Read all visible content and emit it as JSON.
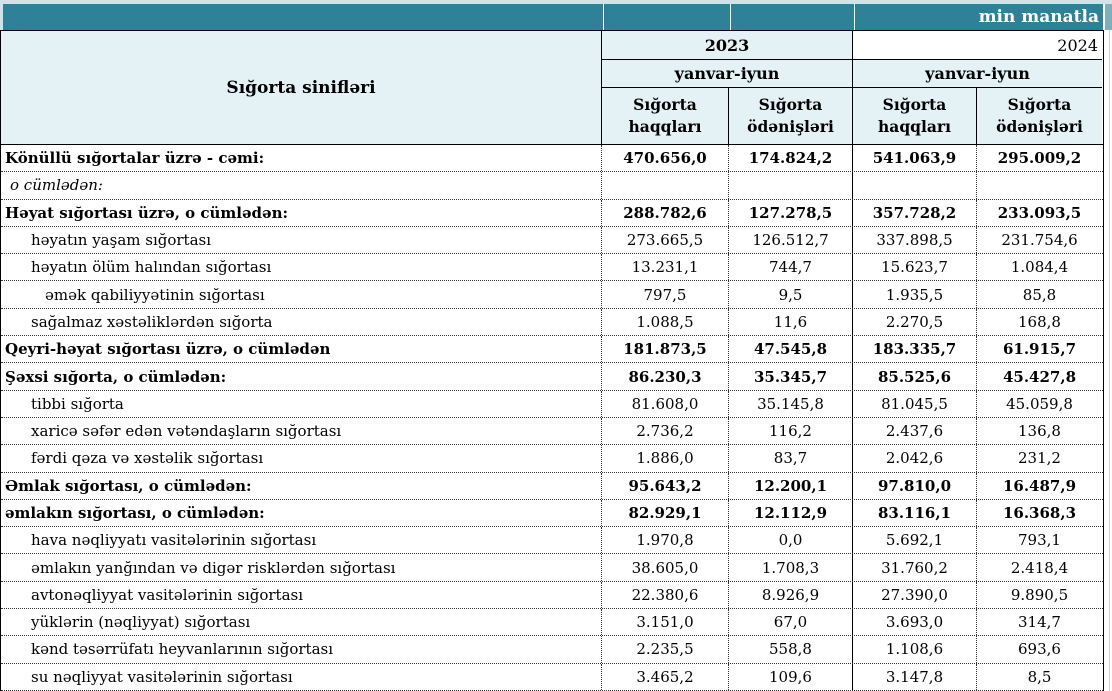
{
  "unit_label": "min manatla",
  "colors": {
    "teal_band": "#2e8196",
    "teal_corner": "#7faebc",
    "header_fill": "#e4f1f5",
    "outer_strip": "#d3e2e9",
    "border": "#000000"
  },
  "header": {
    "row_label_title": "Sığorta sinifləri",
    "years": [
      {
        "label": "2023",
        "period": "yanvar-iyun"
      },
      {
        "label": "2024",
        "period": "yanvar-iyun"
      }
    ],
    "subcols": [
      "Sığorta haqqları",
      "Sığorta ödənişləri"
    ]
  },
  "rows": [
    {
      "label": "Könüllü sığortalar üzrə - cəmi:",
      "style": "bold",
      "indent": 0,
      "values": [
        "470.656,0",
        "174.824,2",
        "541.063,9",
        "295.009,2"
      ]
    },
    {
      "label": "o cümlədən:",
      "style": "italic",
      "indent": 1,
      "values": [
        "",
        "",
        "",
        ""
      ]
    },
    {
      "label": "Həyat sığortası üzrə, o cümlədən:",
      "style": "bold",
      "indent": 0,
      "values": [
        "288.782,6",
        "127.278,5",
        "357.728,2",
        "233.093,5"
      ]
    },
    {
      "label": "həyatın yaşam sığortası",
      "style": "normal",
      "indent": 2,
      "values": [
        "273.665,5",
        "126.512,7",
        "337.898,5",
        "231.754,6"
      ]
    },
    {
      "label": "həyatın ölüm halından sığortası",
      "style": "normal",
      "indent": 2,
      "values": [
        "13.231,1",
        "744,7",
        "15.623,7",
        "1.084,4"
      ]
    },
    {
      "label": "əmək qabiliyyətinin sığortası",
      "style": "normal",
      "indent": 3,
      "values": [
        "797,5",
        "9,5",
        "1.935,5",
        "85,8"
      ]
    },
    {
      "label": "sağalmaz xəstəliklərdən sığorta",
      "style": "normal",
      "indent": 2,
      "values": [
        "1.088,5",
        "11,6",
        "2.270,5",
        "168,8"
      ]
    },
    {
      "label": "Qeyri-həyat sığortası üzrə, o cümlədən",
      "style": "bold",
      "indent": 0,
      "values": [
        "181.873,5",
        "47.545,8",
        "183.335,7",
        "61.915,7"
      ]
    },
    {
      "label": "Şəxsi sığorta,  o cümlədən:",
      "style": "bold",
      "indent": 0,
      "values": [
        "86.230,3",
        "35.345,7",
        "85.525,6",
        "45.427,8"
      ]
    },
    {
      "label": "tibbi sığorta",
      "style": "normal",
      "indent": 2,
      "values": [
        "81.608,0",
        "35.145,8",
        "81.045,5",
        "45.059,8"
      ]
    },
    {
      "label": "xaricə səfər edən vətəndaşların sığortası",
      "style": "normal",
      "indent": 2,
      "values": [
        "2.736,2",
        "116,2",
        "2.437,6",
        "136,8"
      ]
    },
    {
      "label": "fərdi qəza və xəstəlik sığortası",
      "style": "normal",
      "indent": 2,
      "values": [
        "1.886,0",
        "83,7",
        "2.042,6",
        "231,2"
      ]
    },
    {
      "label": "Əmlak sığortası, o cümlədən:",
      "style": "bold",
      "indent": 0,
      "values": [
        "95.643,2",
        "12.200,1",
        "97.810,0",
        "16.487,9"
      ]
    },
    {
      "label": "əmlakın sığortası,  o cümlədən:",
      "style": "bold",
      "indent": 0,
      "values": [
        "82.929,1",
        "12.112,9",
        "83.116,1",
        "16.368,3"
      ]
    },
    {
      "label": "hava nəqliyyatı vasitələrinin sığortası",
      "style": "normal",
      "indent": 2,
      "values": [
        "1.970,8",
        "0,0",
        "5.692,1",
        "793,1"
      ]
    },
    {
      "label": "əmlakın yanğından və digər risklərdən sığortası",
      "style": "normal",
      "indent": 2,
      "values": [
        "38.605,0",
        "1.708,3",
        "31.760,2",
        "2.418,4"
      ]
    },
    {
      "label": "avtonəqliyyat vasitələrinin sığortası",
      "style": "normal",
      "indent": 2,
      "values": [
        "22.380,6",
        "8.926,9",
        "27.390,0",
        "9.890,5"
      ]
    },
    {
      "label": "yüklərin (nəqliyyat) sığortası",
      "style": "normal",
      "indent": 2,
      "values": [
        "3.151,0",
        "67,0",
        "3.693,0",
        "314,7"
      ]
    },
    {
      "label": "kənd təsərrüfatı heyvanlarının sığortası",
      "style": "normal",
      "indent": 2,
      "values": [
        "2.235,5",
        "558,8",
        "1.108,6",
        "693,6"
      ]
    },
    {
      "label": "su nəqliyyat vasitələrinin sığortası",
      "style": "normal",
      "indent": 2,
      "values": [
        "3.465,2",
        "109,6",
        "3.147,8",
        "8,5"
      ]
    }
  ]
}
